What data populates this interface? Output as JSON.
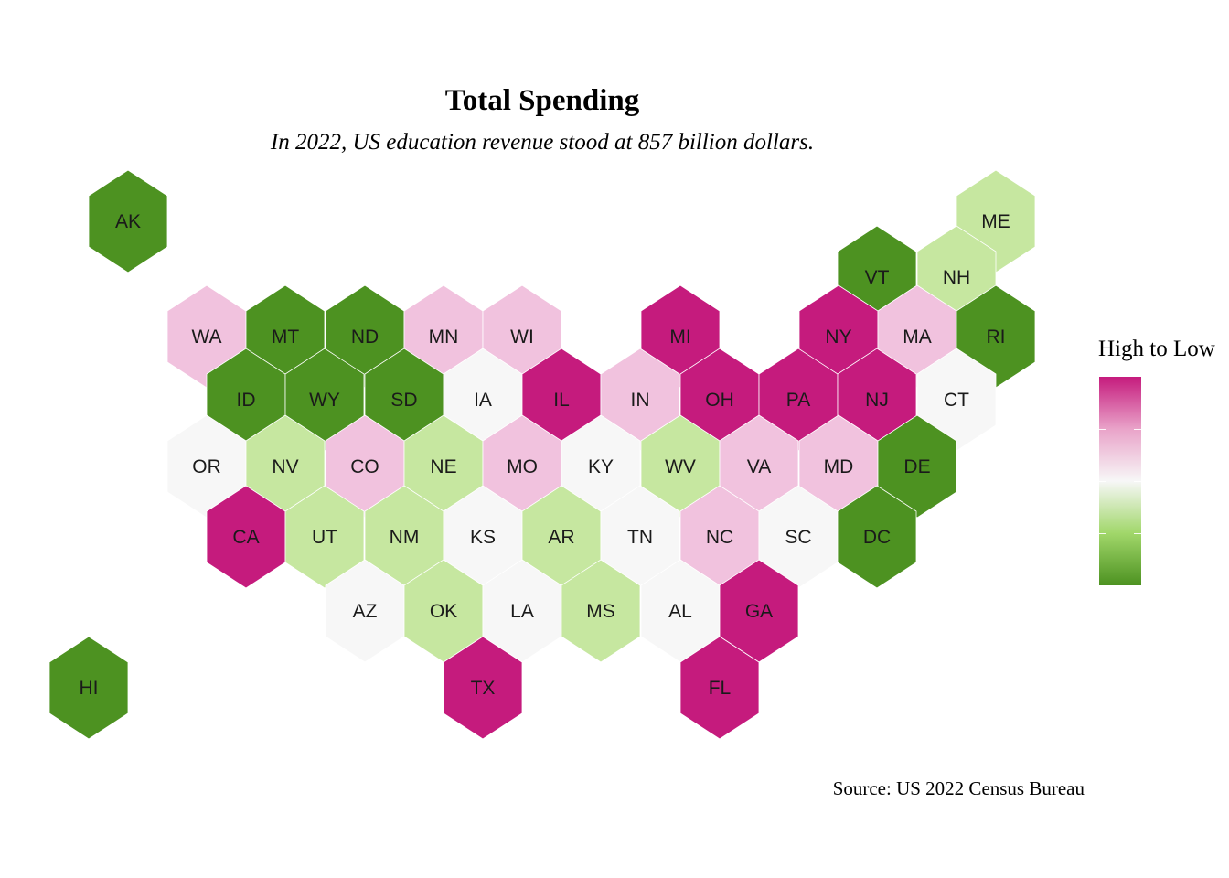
{
  "title": "Total Spending",
  "subtitle": "In 2022, US education revenue stood at 857 billion dollars.",
  "caption": "Source: US 2022 Census Bureau",
  "legend": {
    "title": "High to Low",
    "colors_high_to_low": [
      "#c51b7d",
      "#e9a3c9",
      "#f7f7f7",
      "#a1d76a",
      "#4d9221"
    ]
  },
  "categories": {
    "high": "#c51b7d",
    "mid_high": "#f1c2de",
    "mid": "#f7f7f7",
    "mid_low": "#c6e7a0",
    "low": "#4d9221"
  },
  "states": [
    {
      "abbr": "AK",
      "cat": "low"
    },
    {
      "abbr": "ME",
      "cat": "mid_low"
    },
    {
      "abbr": "VT",
      "cat": "low"
    },
    {
      "abbr": "NH",
      "cat": "mid_low"
    },
    {
      "abbr": "WA",
      "cat": "mid_high"
    },
    {
      "abbr": "MT",
      "cat": "low"
    },
    {
      "abbr": "ND",
      "cat": "low"
    },
    {
      "abbr": "MN",
      "cat": "mid_high"
    },
    {
      "abbr": "WI",
      "cat": "mid_high"
    },
    {
      "abbr": "MI",
      "cat": "high"
    },
    {
      "abbr": "NY",
      "cat": "high"
    },
    {
      "abbr": "MA",
      "cat": "mid_high"
    },
    {
      "abbr": "RI",
      "cat": "low"
    },
    {
      "abbr": "ID",
      "cat": "low"
    },
    {
      "abbr": "WY",
      "cat": "low"
    },
    {
      "abbr": "SD",
      "cat": "low"
    },
    {
      "abbr": "IA",
      "cat": "mid"
    },
    {
      "abbr": "IL",
      "cat": "high"
    },
    {
      "abbr": "IN",
      "cat": "mid_high"
    },
    {
      "abbr": "OH",
      "cat": "high"
    },
    {
      "abbr": "PA",
      "cat": "high"
    },
    {
      "abbr": "NJ",
      "cat": "high"
    },
    {
      "abbr": "CT",
      "cat": "mid"
    },
    {
      "abbr": "OR",
      "cat": "mid"
    },
    {
      "abbr": "NV",
      "cat": "mid_low"
    },
    {
      "abbr": "CO",
      "cat": "mid_high"
    },
    {
      "abbr": "NE",
      "cat": "mid_low"
    },
    {
      "abbr": "MO",
      "cat": "mid_high"
    },
    {
      "abbr": "KY",
      "cat": "mid"
    },
    {
      "abbr": "WV",
      "cat": "mid_low"
    },
    {
      "abbr": "VA",
      "cat": "mid_high"
    },
    {
      "abbr": "MD",
      "cat": "mid_high"
    },
    {
      "abbr": "DE",
      "cat": "low"
    },
    {
      "abbr": "CA",
      "cat": "high"
    },
    {
      "abbr": "UT",
      "cat": "mid_low"
    },
    {
      "abbr": "NM",
      "cat": "mid_low"
    },
    {
      "abbr": "KS",
      "cat": "mid"
    },
    {
      "abbr": "AR",
      "cat": "mid_low"
    },
    {
      "abbr": "TN",
      "cat": "mid"
    },
    {
      "abbr": "NC",
      "cat": "mid_high"
    },
    {
      "abbr": "SC",
      "cat": "mid"
    },
    {
      "abbr": "DC",
      "cat": "low"
    },
    {
      "abbr": "AZ",
      "cat": "mid"
    },
    {
      "abbr": "OK",
      "cat": "mid_low"
    },
    {
      "abbr": "LA",
      "cat": "mid"
    },
    {
      "abbr": "MS",
      "cat": "mid_low"
    },
    {
      "abbr": "AL",
      "cat": "mid"
    },
    {
      "abbr": "GA",
      "cat": "high"
    },
    {
      "abbr": "TX",
      "cat": "high"
    },
    {
      "abbr": "FL",
      "cat": "high"
    },
    {
      "abbr": "HI",
      "cat": "low"
    }
  ]
}
